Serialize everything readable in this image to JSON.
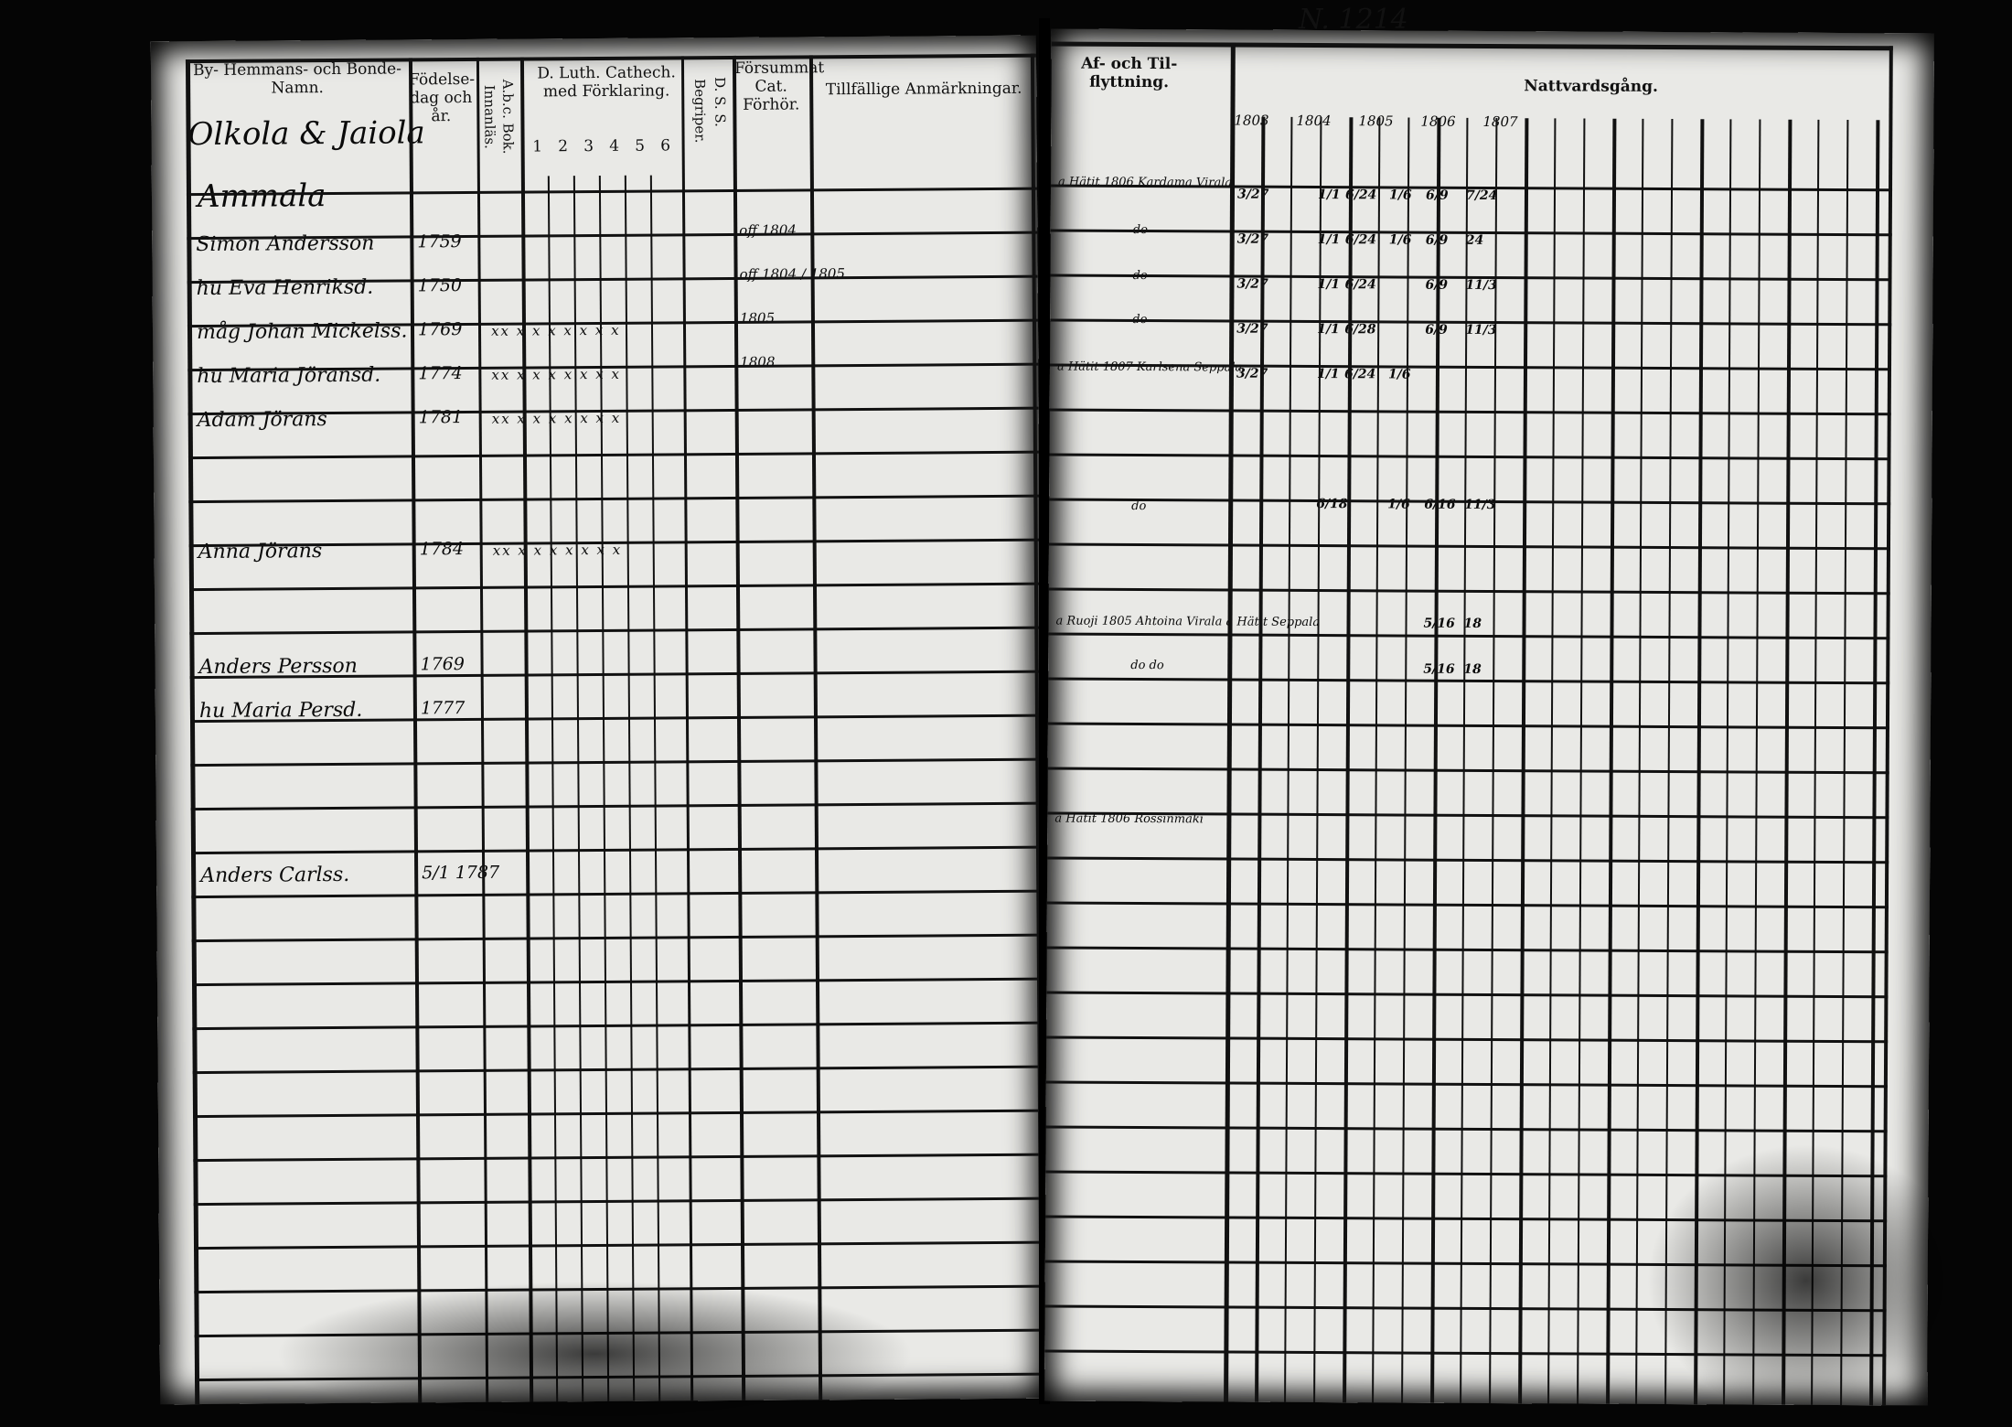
{
  "page_number": "N. 1214",
  "left_page": {
    "headers": {
      "name": "By- Hemmans- och Bonde-Namn.",
      "birth": "Födelse-dag och år.",
      "abc": "A.b.c. Bok. Innanläs.",
      "catechism": "D. Luth. Cathech. med Förklaring.",
      "catechism_numbers": [
        "1",
        "2",
        "3",
        "4",
        "5",
        "6"
      ],
      "begriper": "Begriper.",
      "ds": "D. S. S.",
      "forsummat": "Försummat Cat. Förhör.",
      "remarks": "Tillfällige Anmärkningar."
    },
    "village": "Olkola & Jaiola",
    "farm": "Ammala",
    "entries": [
      {
        "name": "Simon Andersson",
        "year": "1759",
        "marks": "",
        "note": "off 1804"
      },
      {
        "name": "hu Eva Henriksd.",
        "year": "1750",
        "marks": "",
        "note": "off 1804 / 1805"
      },
      {
        "name": "måg Johan Mickelss.",
        "year": "1769",
        "marks": "xx x x x x x x x",
        "note": "1805"
      },
      {
        "name": "hu Maria Jöransd.",
        "year": "1774",
        "marks": "xx x x x x x x x",
        "note": "1808"
      },
      {
        "name": "Adam Jörans",
        "year": "1781",
        "marks": "xx x x x x x x x",
        "note": ""
      },
      {
        "name": "Anna Jörans",
        "year": "1784",
        "marks": "xx x x x x x x x",
        "note": ""
      },
      {
        "name": "Anders Persson",
        "year": "1769",
        "marks": "",
        "note": ""
      },
      {
        "name": "hu Maria Persd.",
        "year": "1777",
        "marks": "",
        "note": ""
      },
      {
        "name": "Anders Carlss.",
        "year": "5/1 1787",
        "marks": "",
        "note": ""
      }
    ]
  },
  "right_page": {
    "headers": {
      "moving": "Af- och Til- flyttning.",
      "communion": "Nattvardsgång.",
      "years": [
        "1803",
        "1804",
        "1805",
        "1806",
        "1807"
      ]
    },
    "moving_entries": [
      "a Hätit 1806 Kardama Virala",
      "do",
      "do",
      "do",
      "a Hätit 1807 Karlsena Seppala",
      "do",
      "a Ruoji 1805 Ahtoina Virala a Hätit Seppala",
      "do do",
      "a Hätit 1806 Rossinmäki"
    ],
    "communion_rows": [
      [
        "3/27",
        "1/1",
        "6/24",
        "1/6",
        "6/9",
        "7/24"
      ],
      [
        "3/27",
        "1/1",
        "6/24",
        "1/6",
        "6/9",
        "24"
      ],
      [
        "3/27",
        "1/1",
        "6/24",
        "",
        "6/9",
        "11/3"
      ],
      [
        "3/27",
        "1/1",
        "6/28",
        "",
        "6/9",
        "11/3"
      ],
      [
        "3/27",
        "1/1",
        "6/24",
        "1/6",
        "",
        ""
      ],
      [
        "",
        "6/18",
        "",
        "1/6",
        "6/16",
        "11/3"
      ],
      [
        "",
        "",
        "",
        "",
        "5/16",
        "18"
      ],
      [
        "",
        "",
        "",
        "",
        "5/16",
        "18"
      ]
    ]
  }
}
